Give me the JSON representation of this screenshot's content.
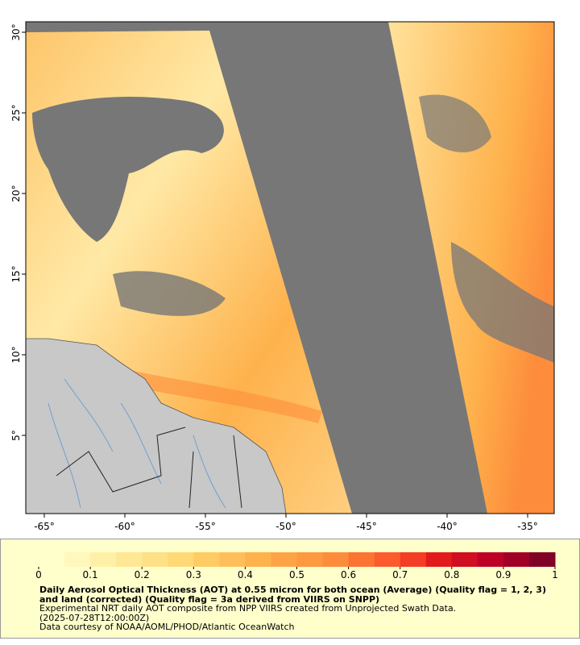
{
  "map": {
    "xlim": [
      -66.15,
      -33.35
    ],
    "ylim": [
      0.15,
      30.65
    ],
    "xticks": [
      {
        "value": -65,
        "label": "-65°"
      },
      {
        "value": -60,
        "label": "-60°"
      },
      {
        "value": -55,
        "label": "-55°"
      },
      {
        "value": -50,
        "label": "-50°"
      },
      {
        "value": -45,
        "label": "-45°"
      },
      {
        "value": -40,
        "label": "-40°"
      },
      {
        "value": -35,
        "label": "-35°"
      }
    ],
    "yticks": [
      {
        "value": 5,
        "label": "5°"
      },
      {
        "value": 10,
        "label": "10°"
      },
      {
        "value": 15,
        "label": "15°"
      },
      {
        "value": 20,
        "label": "20°"
      },
      {
        "value": 25,
        "label": "25°"
      },
      {
        "value": 30,
        "label": "30°"
      }
    ]
  },
  "colorbar": {
    "range": [
      0,
      1
    ],
    "ticks": [
      0,
      0.1,
      0.2,
      0.3,
      0.4,
      0.5,
      0.6,
      0.7,
      0.8,
      0.9,
      1
    ],
    "colors": [
      "#ffffcc",
      "#fff7bc",
      "#fff0a8",
      "#ffe895",
      "#fee087",
      "#fed976",
      "#fecb65",
      "#febf5a",
      "#feb24c",
      "#fea446",
      "#fd9a41",
      "#fd8d3c",
      "#fc7434",
      "#fc5b2e",
      "#f43d25",
      "#e31a1c",
      "#d00d21",
      "#bd0026",
      "#a10026",
      "#800026"
    ]
  },
  "caption": {
    "title": "Daily Aerosol Optical Thickness (AOT) at 0.55 micron for both ocean (Average) (Quality flag = 1, 2, 3) and land (corrected) (Quality flag = 3a derived from VIIRS on SNPP)",
    "lines": [
      "Experimental NRT daily AOT composite from NPP VIIRS created from Unprojected Swath Data.",
      "(2025-07-28T12:00:00Z)",
      "Data courtesy of NOAA/AOML/PHOD/Atlantic OceanWatch"
    ]
  }
}
